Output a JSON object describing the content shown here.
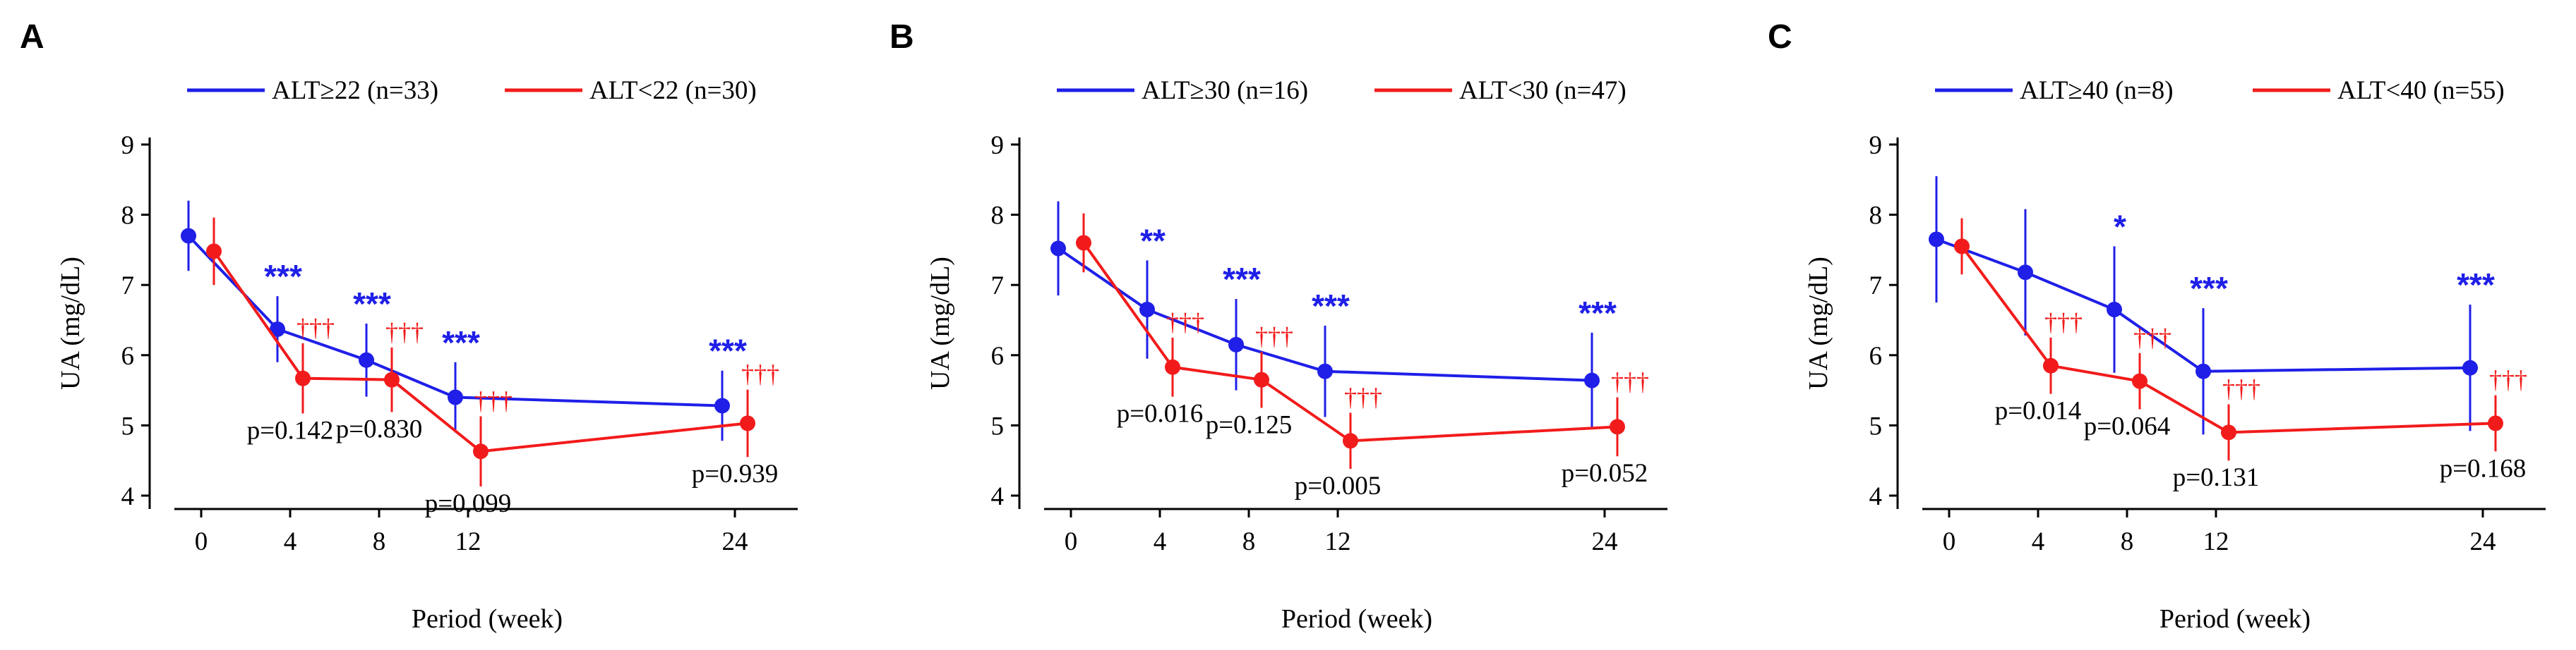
{
  "colors": {
    "high": "#1f1fe8",
    "low": "#f21b1b",
    "axis": "#000000",
    "text": "#000000"
  },
  "chart_data": [
    {
      "panel": "A",
      "type": "line",
      "ylabel": "UA (mg/dL)",
      "xlabel": "Period (week)",
      "ylim": [
        4,
        9
      ],
      "yticks": [
        "4",
        "5",
        "6",
        "7",
        "8",
        "9"
      ],
      "xticks": [
        "0",
        "4",
        "8",
        "12",
        "24"
      ],
      "x": [
        0,
        4,
        8,
        12,
        24
      ],
      "series": [
        {
          "name": "ALT≥22 (n=33)",
          "color": "#1f1fe8",
          "values": [
            7.7,
            6.37,
            5.93,
            5.4,
            5.28
          ],
          "err": [
            0.5,
            0.47,
            0.52,
            0.5,
            0.5
          ]
        },
        {
          "name": "ALT<22 (n=30)",
          "color": "#f21b1b",
          "values": [
            7.48,
            5.67,
            5.65,
            4.63,
            5.03
          ],
          "err": [
            0.48,
            0.5,
            0.46,
            0.5,
            0.48
          ]
        }
      ],
      "sig_high": [
        "",
        "***",
        "***",
        "***",
        "***"
      ],
      "sig_low": [
        "",
        "†††",
        "†††",
        "†††",
        "†††"
      ],
      "pvalues": [
        "",
        "p=0.142",
        "p=0.830",
        "p=0.099",
        "p=0.939"
      ]
    },
    {
      "panel": "B",
      "type": "line",
      "ylabel": "UA (mg/dL)",
      "xlabel": "Period (week)",
      "ylim": [
        4,
        9
      ],
      "yticks": [
        "4",
        "5",
        "6",
        "7",
        "8",
        "9"
      ],
      "xticks": [
        "0",
        "4",
        "8",
        "12",
        "24"
      ],
      "x": [
        0,
        4,
        8,
        12,
        24
      ],
      "series": [
        {
          "name": "ALT≥30 (n=16)",
          "color": "#1f1fe8",
          "values": [
            7.52,
            6.65,
            6.15,
            5.77,
            5.64
          ],
          "err": [
            0.67,
            0.7,
            0.65,
            0.65,
            0.68
          ]
        },
        {
          "name": "ALT<30 (n=47)",
          "color": "#f21b1b",
          "values": [
            7.6,
            5.83,
            5.65,
            4.78,
            4.98
          ],
          "err": [
            0.42,
            0.42,
            0.4,
            0.4,
            0.42
          ]
        }
      ],
      "sig_high": [
        "",
        "**",
        "***",
        "***",
        "***"
      ],
      "sig_low": [
        "",
        "†††",
        "†††",
        "†††",
        "†††"
      ],
      "pvalues": [
        "",
        "p=0.016",
        "p=0.125",
        "p=0.005",
        "p=0.052"
      ]
    },
    {
      "panel": "C",
      "type": "line",
      "ylabel": "UA (mg/dL)",
      "xlabel": "Period (week)",
      "ylim": [
        4,
        9
      ],
      "yticks": [
        "4",
        "5",
        "6",
        "7",
        "8",
        "9"
      ],
      "xticks": [
        "0",
        "4",
        "8",
        "12",
        "24"
      ],
      "x": [
        0,
        4,
        8,
        12,
        24
      ],
      "series": [
        {
          "name": "ALT≥40 (n=8)",
          "color": "#1f1fe8",
          "values": [
            7.65,
            7.18,
            6.65,
            5.77,
            5.82
          ],
          "err": [
            0.9,
            0.9,
            0.9,
            0.9,
            0.9
          ]
        },
        {
          "name": "ALT<40 (n=55)",
          "color": "#f21b1b",
          "values": [
            7.55,
            5.85,
            5.63,
            4.9,
            5.03
          ],
          "err": [
            0.4,
            0.4,
            0.4,
            0.4,
            0.4
          ]
        }
      ],
      "sig_high": [
        "",
        "",
        "*",
        "***",
        "***"
      ],
      "sig_low": [
        "",
        "†††",
        "†††",
        "†††",
        "†††"
      ],
      "pvalues": [
        "",
        "p=0.014",
        "p=0.064",
        "p=0.131",
        "p=0.168"
      ]
    }
  ]
}
